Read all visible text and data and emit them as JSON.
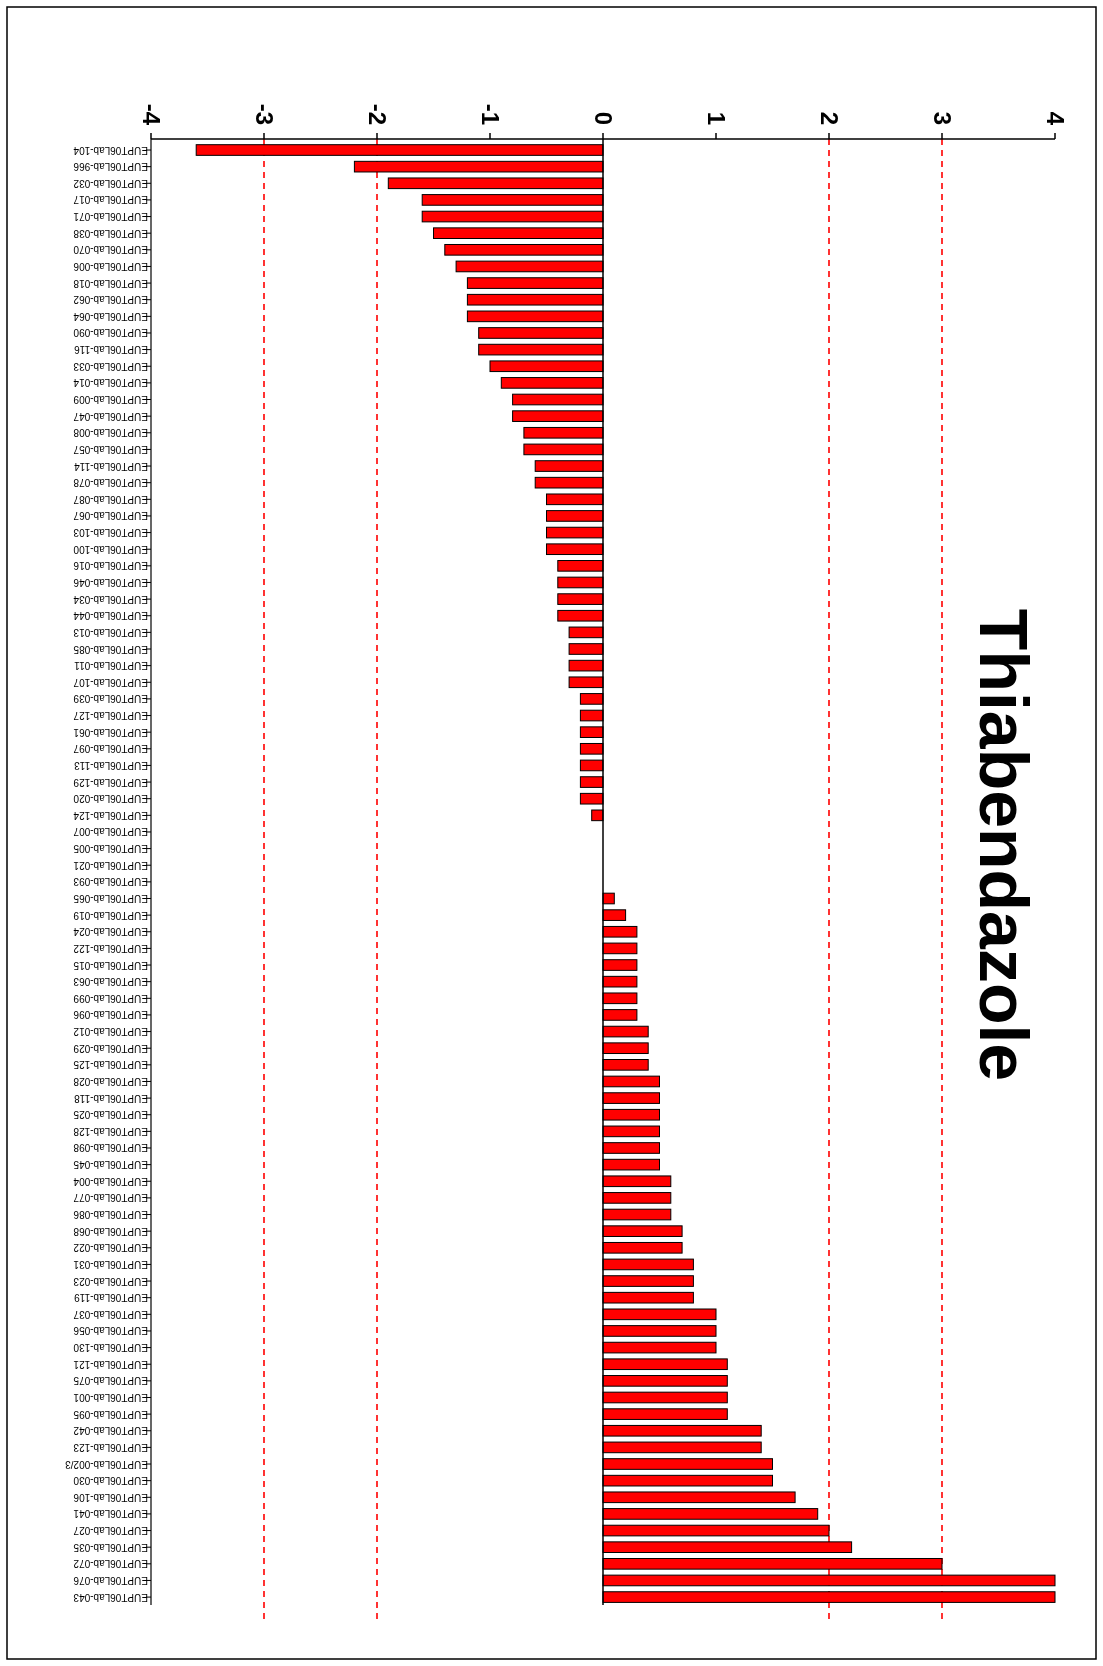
{
  "chart_data": {
    "type": "bar",
    "orientation": "horizontal",
    "title": "Thiabendazole",
    "categories": [
      "EUPT06Lab-104",
      "EUPT06Lab-966",
      "EUPT06Lab-032",
      "EUPT06Lab-017",
      "EUPT06Lab-071",
      "EUPT06Lab-038",
      "EUPT06Lab-070",
      "EUPT06Lab-006",
      "EUPT06Lab-018",
      "EUPT06Lab-062",
      "EUPT06Lab-064",
      "EUPT06Lab-090",
      "EUPT06Lab-116",
      "EUPT06Lab-033",
      "EUPT06Lab-014",
      "EUPT06Lab-009",
      "EUPT06Lab-047",
      "EUPT06Lab-008",
      "EUPT06Lab-057",
      "EUPT06Lab-114",
      "EUPT06Lab-078",
      "EUPT06Lab-087",
      "EUPT06Lab-067",
      "EUPT06Lab-103",
      "EUPT06Lab-100",
      "EUPT06Lab-016",
      "EUPT06Lab-046",
      "EUPT06Lab-034",
      "EUPT06Lab-044",
      "EUPT06Lab-013",
      "EUPT06Lab-085",
      "EUPT06Lab-011",
      "EUPT06Lab-107",
      "EUPT06Lab-039",
      "EUPT06Lab-127",
      "EUPT06Lab-061",
      "EUPT06Lab-097",
      "EUPT06Lab-113",
      "EUPT06Lab-129",
      "EUPT06Lab-020",
      "EUPT06Lab-124",
      "EUPT06Lab-007",
      "EUPT06Lab-005",
      "EUPT06Lab-021",
      "EUPT06Lab-093",
      "EUPT06Lab-065",
      "EUPT06Lab-019",
      "EUPT06Lab-024",
      "EUPT06Lab-122",
      "EUPT06Lab-015",
      "EUPT06Lab-063",
      "EUPT06Lab-099",
      "EUPT06Lab-096",
      "EUPT06Lab-012",
      "EUPT06Lab-029",
      "EUPT06Lab-125",
      "EUPT06Lab-028",
      "EUPT06Lab-118",
      "EUPT06Lab-025",
      "EUPT06Lab-128",
      "EUPT06Lab-098",
      "EUPT06Lab-045",
      "EUPT06Lab-004",
      "EUPT06Lab-077",
      "EUPT06Lab-086",
      "EUPT06Lab-068",
      "EUPT06Lab-022",
      "EUPT06Lab-031",
      "EUPT06Lab-023",
      "EUPT06Lab-119",
      "EUPT06Lab-037",
      "EUPT06Lab-056",
      "EUPT06Lab-130",
      "EUPT06Lab-121",
      "EUPT06Lab-075",
      "EUPT06Lab-001",
      "EUPT06Lab-095",
      "EUPT06Lab-042",
      "EUPT06Lab-123",
      "EUPT06Lab-002/3",
      "EUPT06Lab-030",
      "EUPT06Lab-106",
      "EUPT06Lab-041",
      "EUPT06Lab-027",
      "EUPT06Lab-035",
      "EUPT06Lab-072",
      "EUPT06Lab-076",
      "EUPT06Lab-043"
    ],
    "values": [
      -3.6,
      -2.2,
      -1.9,
      -1.6,
      -1.6,
      -1.5,
      -1.4,
      -1.3,
      -1.2,
      -1.2,
      -1.2,
      -1.1,
      -1.1,
      -1.0,
      -0.9,
      -0.8,
      -0.8,
      -0.7,
      -0.7,
      -0.6,
      -0.6,
      -0.5,
      -0.5,
      -0.5,
      -0.5,
      -0.4,
      -0.4,
      -0.4,
      -0.4,
      -0.3,
      -0.3,
      -0.3,
      -0.3,
      -0.2,
      -0.2,
      -0.2,
      -0.2,
      -0.2,
      -0.2,
      -0.2,
      -0.1,
      0,
      0,
      0,
      0,
      0.1,
      0.2,
      0.3,
      0.3,
      0.3,
      0.3,
      0.3,
      0.3,
      0.4,
      0.4,
      0.4,
      0.5,
      0.5,
      0.5,
      0.5,
      0.5,
      0.5,
      0.6,
      0.6,
      0.6,
      0.7,
      0.7,
      0.8,
      0.8,
      0.8,
      1.0,
      1.0,
      1.0,
      1.1,
      1.1,
      1.1,
      1.1,
      1.4,
      1.4,
      1.5,
      1.5,
      1.7,
      1.9,
      2.0,
      2.2,
      3.0,
      4.0,
      4.0
    ],
    "color": "#ff0000",
    "xlim": [
      -4,
      4
    ],
    "xticks": [
      -4,
      -3,
      -2,
      -1,
      0,
      1,
      2,
      3,
      4
    ],
    "grid": false,
    "ref_lines": [
      {
        "axis": "x",
        "value": -3,
        "color": "#ff0000",
        "line_style": "dashed"
      },
      {
        "axis": "x",
        "value": -2,
        "color": "#ff0000",
        "line_style": "dashed"
      },
      {
        "axis": "x",
        "value": 2,
        "color": "#ff0000",
        "line_style": "dashed"
      },
      {
        "axis": "x",
        "value": 3,
        "color": "#ff0000",
        "line_style": "dashed"
      }
    ]
  }
}
